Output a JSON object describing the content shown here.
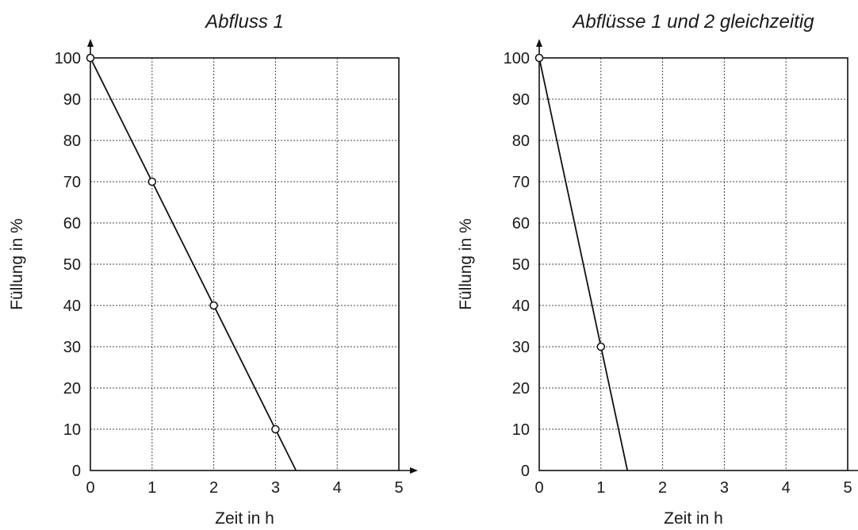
{
  "chart_data": [
    {
      "type": "line",
      "title": "Abfluss 1",
      "xlabel": "Zeit in h",
      "ylabel": "Füllung in %",
      "xlim": [
        0,
        5
      ],
      "ylim": [
        0,
        100
      ],
      "xticks": [
        0,
        1,
        2,
        3,
        4,
        5
      ],
      "yticks": [
        0,
        10,
        20,
        30,
        40,
        50,
        60,
        70,
        80,
        90,
        100
      ],
      "grid": true,
      "series": [
        {
          "line": [
            [
              0,
              100
            ],
            [
              3.333,
              0
            ]
          ],
          "points": [
            [
              0,
              100
            ],
            [
              1,
              70
            ],
            [
              2,
              40
            ],
            [
              3,
              10
            ]
          ]
        }
      ]
    },
    {
      "type": "line",
      "title": "Abflüsse 1 und 2 gleichzeitig",
      "xlabel": "Zeit in h",
      "ylabel": "Füllung in %",
      "xlim": [
        0,
        5
      ],
      "ylim": [
        0,
        100
      ],
      "xticks": [
        0,
        1,
        2,
        3,
        4,
        5
      ],
      "yticks": [
        0,
        10,
        20,
        30,
        40,
        50,
        60,
        70,
        80,
        90,
        100
      ],
      "grid": true,
      "series": [
        {
          "line": [
            [
              0,
              100
            ],
            [
              1.429,
              0
            ]
          ],
          "points": [
            [
              0,
              100
            ],
            [
              1,
              30
            ]
          ]
        }
      ]
    }
  ]
}
